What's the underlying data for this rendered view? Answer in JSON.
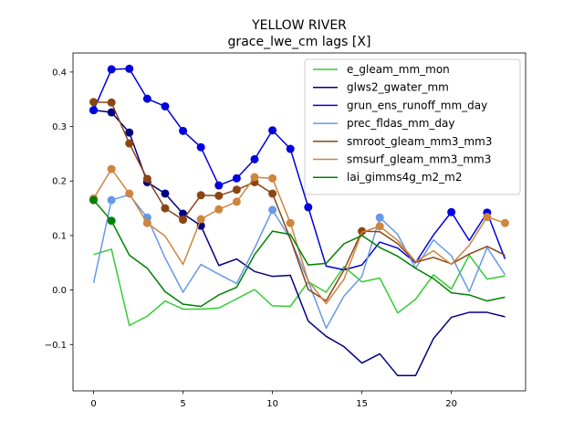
{
  "chart_data": {
    "type": "line",
    "title": "YELLOW RIVER",
    "subtitle": "grace_lwe_cm lags [X]",
    "xlabel": "",
    "ylabel": "",
    "xlim": [
      -1.15,
      24.15
    ],
    "ylim": [
      -0.185,
      0.435
    ],
    "x_ticks": [
      0,
      5,
      10,
      15,
      20
    ],
    "y_ticks": [
      -0.1,
      0.0,
      0.1,
      0.2,
      0.3,
      0.4
    ],
    "y_tick_labels": [
      "−0.1",
      "0.0",
      "0.1",
      "0.2",
      "0.3",
      "0.4"
    ],
    "grid": false,
    "legend_position": "top-right",
    "x": [
      0,
      1,
      2,
      3,
      4,
      5,
      6,
      7,
      8,
      9,
      10,
      11,
      12,
      13,
      14,
      15,
      16,
      17,
      18,
      19,
      20,
      21,
      22,
      23
    ],
    "series": [
      {
        "name": "e_gleam_mm_mon",
        "color": "#33cc33",
        "values": [
          0.065,
          0.075,
          -0.065,
          -0.048,
          -0.02,
          -0.035,
          -0.035,
          -0.033,
          -0.016,
          0.001,
          -0.029,
          -0.03,
          0.015,
          -0.004,
          0.043,
          0.015,
          0.022,
          -0.042,
          -0.017,
          0.028,
          0.002,
          0.064,
          0.02,
          0.026
        ],
        "markers": []
      },
      {
        "name": "glws2_gwater_mm",
        "color": "#000080",
        "values": [
          0.33,
          0.326,
          0.289,
          0.198,
          0.177,
          0.14,
          0.118,
          0.045,
          0.057,
          0.034,
          0.025,
          0.027,
          -0.057,
          -0.085,
          -0.104,
          -0.134,
          -0.117,
          -0.157,
          -0.157,
          -0.089,
          -0.05,
          -0.041,
          -0.041,
          -0.049
        ],
        "markers": [
          0,
          1,
          2,
          3,
          4,
          5,
          6
        ]
      },
      {
        "name": "grun_ens_runoff_mm_day",
        "color": "#0000dd",
        "values": [
          0.33,
          0.405,
          0.406,
          0.351,
          0.337,
          0.292,
          0.262,
          0.192,
          0.205,
          0.24,
          0.293,
          0.259,
          0.152,
          0.044,
          0.037,
          0.046,
          0.088,
          0.077,
          0.05,
          0.101,
          0.143,
          0.091,
          0.142,
          0.057
        ],
        "markers": [
          0,
          1,
          2,
          3,
          4,
          5,
          6,
          7,
          8,
          9,
          10,
          11,
          12,
          20,
          22
        ]
      },
      {
        "name": "prec_fldas_mm_day",
        "color": "#6699e6",
        "values": [
          0.013,
          0.165,
          0.175,
          0.133,
          0.059,
          -0.004,
          0.047,
          0.029,
          0.012,
          0.077,
          0.147,
          0.094,
          0.016,
          -0.07,
          -0.011,
          0.025,
          0.133,
          0.102,
          0.04,
          0.092,
          0.063,
          -0.003,
          0.078,
          0.028
        ],
        "markers": [
          1,
          3,
          10,
          16
        ]
      },
      {
        "name": "smroot_gleam_mm3_mm3",
        "color": "#8b4513",
        "values": [
          0.345,
          0.344,
          0.269,
          0.204,
          0.15,
          0.129,
          0.174,
          0.173,
          0.184,
          0.198,
          0.177,
          0.094,
          0.001,
          -0.02,
          0.037,
          0.108,
          0.107,
          0.085,
          0.051,
          0.06,
          0.048,
          0.066,
          0.08,
          0.064
        ],
        "markers": [
          0,
          1,
          2,
          3,
          4,
          5,
          6,
          7,
          8,
          9,
          10,
          15
        ]
      },
      {
        "name": "smsurf_gleam_mm3_mm3",
        "color": "#cd853f",
        "values": [
          0.168,
          0.222,
          0.177,
          0.123,
          0.099,
          0.047,
          0.13,
          0.148,
          0.162,
          0.207,
          0.205,
          0.123,
          0.017,
          -0.025,
          0.02,
          0.106,
          0.117,
          0.091,
          0.052,
          0.072,
          0.047,
          0.082,
          0.134,
          0.123
        ],
        "markers": [
          0,
          1,
          2,
          3,
          6,
          7,
          8,
          9,
          10,
          11,
          16,
          22,
          23
        ]
      },
      {
        "name": "lai_gimms4g_m2_m2",
        "color": "#008000",
        "values": [
          0.165,
          0.127,
          0.064,
          0.04,
          -0.003,
          -0.026,
          -0.03,
          -0.009,
          0.005,
          0.065,
          0.108,
          0.102,
          0.046,
          0.049,
          0.085,
          0.1,
          0.078,
          0.062,
          0.04,
          0.021,
          -0.005,
          -0.009,
          -0.02,
          -0.013
        ],
        "markers": [
          0,
          1
        ]
      }
    ]
  }
}
